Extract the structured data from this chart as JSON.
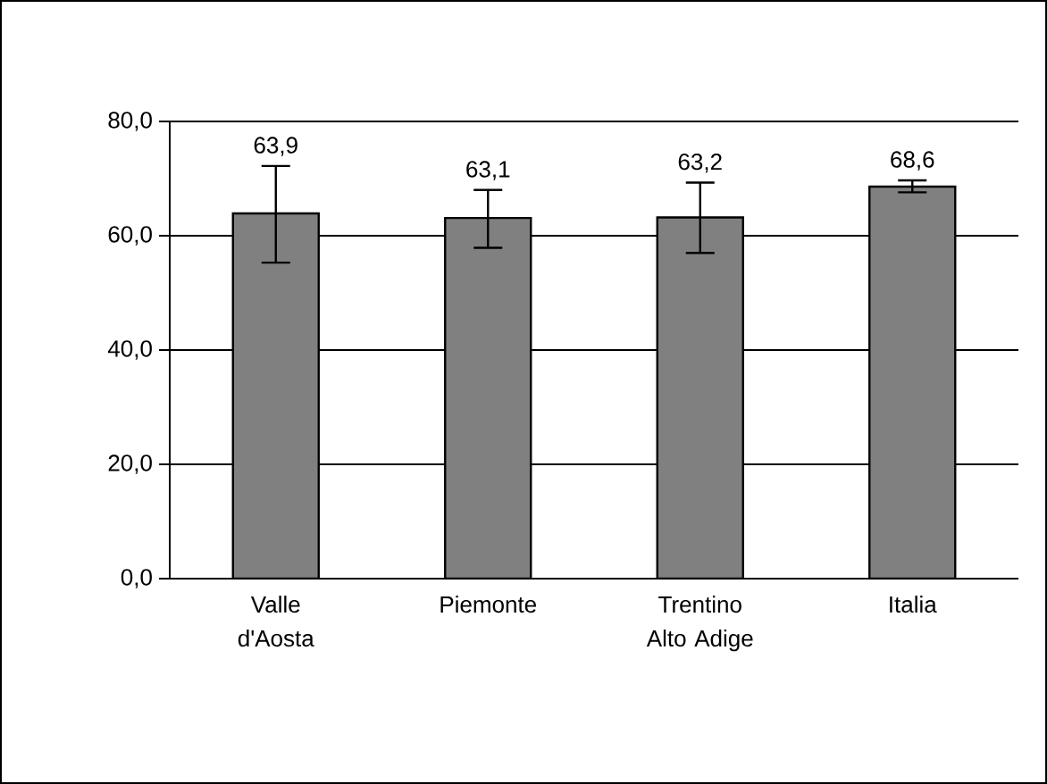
{
  "chart_data": {
    "type": "bar",
    "categories": [
      "Valle d'Aosta",
      "Piemonte",
      "Trentino Alto Adige",
      "Italia"
    ],
    "values": [
      63.9,
      63.1,
      63.2,
      68.6
    ],
    "value_labels": [
      "63,9",
      "63,1",
      "63,2",
      "68,6"
    ],
    "errors": [
      [
        55.3,
        72.2
      ],
      [
        57.9,
        68.0
      ],
      [
        57.0,
        69.3
      ],
      [
        67.6,
        69.7
      ]
    ],
    "color": "#808080",
    "ylim": [
      0,
      80
    ],
    "yticks": [
      {
        "value": 0,
        "label": "0,0"
      },
      {
        "value": 20,
        "label": "20,0"
      },
      {
        "value": 40,
        "label": "40,0"
      },
      {
        "value": 60,
        "label": "60,0"
      },
      {
        "value": 80,
        "label": "80,0"
      }
    ],
    "grid": "y"
  }
}
